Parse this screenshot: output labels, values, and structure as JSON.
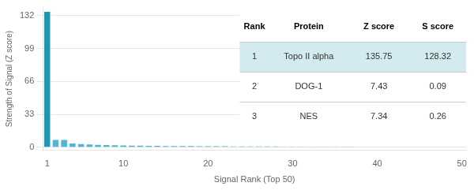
{
  "chart_data": {
    "type": "bar",
    "xlabel": "Signal Rank (Top 50)",
    "ylabel": "Strength of Signal (Z score)",
    "x": [
      1,
      2,
      3,
      4,
      5,
      6,
      7,
      8,
      9,
      10,
      11,
      12,
      13,
      14,
      15,
      16,
      17,
      18,
      19,
      20,
      21,
      22,
      23,
      24,
      25,
      26,
      27,
      28,
      29,
      30,
      31,
      32,
      33,
      34,
      35,
      36,
      37,
      38,
      39,
      40,
      41,
      42,
      43,
      44,
      45,
      46,
      47,
      48,
      49,
      50
    ],
    "values": [
      135.75,
      7.43,
      7.34,
      3.8,
      3.2,
      2.8,
      2.5,
      2.2,
      2.0,
      1.85,
      1.7,
      1.6,
      1.5,
      1.4,
      1.3,
      1.25,
      1.2,
      1.15,
      1.1,
      1.05,
      1.0,
      0.95,
      0.9,
      0.87,
      0.84,
      0.81,
      0.78,
      0.75,
      0.72,
      0.7,
      0.68,
      0.65,
      0.63,
      0.61,
      0.59,
      0.57,
      0.55,
      0.53,
      0.51,
      0.5,
      0.48,
      0.46,
      0.45,
      0.43,
      0.42,
      0.4,
      0.39,
      0.37,
      0.36,
      0.35
    ],
    "colors": [
      "#2196b0",
      "#4db8d4",
      "#4db8d4",
      "#4db8d4",
      "#4db8d4",
      "#4db8d4",
      "#4db8d4",
      "#4db8d4",
      "#4db8d4",
      "#4db8d4",
      "#4db8d4",
      "#4db8d4",
      "#4db8d4",
      "#4db8d4",
      "#4db8d4",
      "#4db8d4",
      "#4db8d4",
      "#4db8d4",
      "#4db8d4",
      "#4db8d4",
      "#4db8d4",
      "#4db8d4",
      "#4db8d4",
      "#4db8d4",
      "#4db8d4",
      "#4db8d4",
      "#4db8d4",
      "#4db8d4",
      "#4db8d4",
      "#4db8d4",
      "#4db8d4",
      "#4db8d4",
      "#4db8d4",
      "#4db8d4",
      "#4db8d4",
      "#4db8d4",
      "#4db8d4",
      "#4db8d4",
      "#4db8d4",
      "#4db8d4",
      "#4db8d4",
      "#4db8d4",
      "#4db8d4",
      "#4db8d4",
      "#4db8d4",
      "#4db8d4",
      "#4db8d4",
      "#4db8d4",
      "#4db8d4",
      "#4db8d4"
    ],
    "xlim": [
      0.5,
      50.5
    ],
    "xticks": [
      1,
      10,
      20,
      30,
      40,
      50
    ],
    "ylim": [
      -3,
      140
    ],
    "yticks": [
      0,
      33,
      66,
      99,
      132
    ],
    "grid": true,
    "table": {
      "columns": [
        "Rank",
        "Protein",
        "Z score",
        "S score"
      ],
      "rows": [
        [
          1,
          "Topo II alpha",
          135.75,
          128.32
        ],
        [
          2,
          "DOG-1",
          7.43,
          0.09
        ],
        [
          3,
          "NES",
          7.34,
          0.26
        ]
      ]
    }
  }
}
